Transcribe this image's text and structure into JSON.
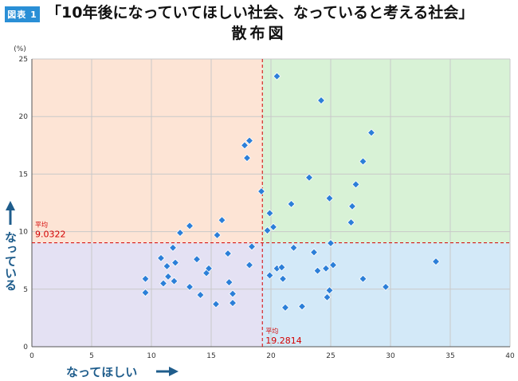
{
  "figure_label": "図表 1",
  "title": "「10年後になっていてほしい社会、なっていると考える社会」",
  "subtitle": "散布図",
  "colors": {
    "q_top_left": "#fde4d5",
    "q_top_right": "#d8f2d6",
    "q_bottom_left": "#e4e1f3",
    "q_bottom_right": "#d3e9f8",
    "point": "#2c7fd8",
    "mean_line": "#d40000",
    "axis_caption": "#1f5d8c"
  },
  "chart_data": {
    "type": "scatter",
    "xlabel": "なってほしい",
    "ylabel": "なっている",
    "y_unit": "(%)",
    "xlim": [
      0,
      40
    ],
    "ylim": [
      0,
      25
    ],
    "x_ticks": [
      0,
      5,
      10,
      15,
      20,
      25,
      30,
      35,
      40
    ],
    "y_ticks": [
      0,
      5,
      10,
      15,
      20,
      25
    ],
    "grid": true,
    "mean_x": {
      "label": "平均",
      "value": "19.2814",
      "x": 19.2814
    },
    "mean_y": {
      "label": "平均",
      "value": "9.0322",
      "y": 9.0322
    },
    "points": [
      {
        "x": 9.5,
        "y": 5.9
      },
      {
        "x": 9.5,
        "y": 4.7
      },
      {
        "x": 10.8,
        "y": 7.7
      },
      {
        "x": 11.0,
        "y": 5.5
      },
      {
        "x": 11.3,
        "y": 7.0
      },
      {
        "x": 11.4,
        "y": 6.1
      },
      {
        "x": 11.8,
        "y": 8.6
      },
      {
        "x": 11.9,
        "y": 5.7
      },
      {
        "x": 12.0,
        "y": 7.3
      },
      {
        "x": 12.4,
        "y": 9.9
      },
      {
        "x": 13.2,
        "y": 10.5
      },
      {
        "x": 13.2,
        "y": 5.2
      },
      {
        "x": 13.8,
        "y": 7.6
      },
      {
        "x": 14.1,
        "y": 4.5
      },
      {
        "x": 14.6,
        "y": 6.4
      },
      {
        "x": 14.8,
        "y": 6.8
      },
      {
        "x": 15.4,
        "y": 3.7
      },
      {
        "x": 15.5,
        "y": 9.7
      },
      {
        "x": 15.9,
        "y": 11.0
      },
      {
        "x": 16.4,
        "y": 8.1
      },
      {
        "x": 16.5,
        "y": 5.6
      },
      {
        "x": 16.8,
        "y": 4.6
      },
      {
        "x": 16.8,
        "y": 3.8
      },
      {
        "x": 17.8,
        "y": 17.5
      },
      {
        "x": 18.0,
        "y": 16.4
      },
      {
        "x": 18.2,
        "y": 17.9
      },
      {
        "x": 18.2,
        "y": 7.1
      },
      {
        "x": 18.4,
        "y": 8.7
      },
      {
        "x": 19.2,
        "y": 13.5
      },
      {
        "x": 19.7,
        "y": 10.1
      },
      {
        "x": 19.9,
        "y": 11.6
      },
      {
        "x": 19.9,
        "y": 6.2
      },
      {
        "x": 20.2,
        "y": 10.4
      },
      {
        "x": 20.5,
        "y": 23.5
      },
      {
        "x": 20.5,
        "y": 6.8
      },
      {
        "x": 20.9,
        "y": 6.9
      },
      {
        "x": 21.0,
        "y": 5.9
      },
      {
        "x": 21.2,
        "y": 3.4
      },
      {
        "x": 21.7,
        "y": 12.4
      },
      {
        "x": 21.9,
        "y": 8.6
      },
      {
        "x": 22.6,
        "y": 3.5
      },
      {
        "x": 23.2,
        "y": 14.7
      },
      {
        "x": 23.6,
        "y": 8.2
      },
      {
        "x": 23.9,
        "y": 6.6
      },
      {
        "x": 24.2,
        "y": 21.4
      },
      {
        "x": 24.6,
        "y": 6.8
      },
      {
        "x": 24.7,
        "y": 4.3
      },
      {
        "x": 24.9,
        "y": 12.9
      },
      {
        "x": 24.9,
        "y": 4.9
      },
      {
        "x": 25.0,
        "y": 9.0
      },
      {
        "x": 25.2,
        "y": 7.1
      },
      {
        "x": 26.7,
        "y": 10.8
      },
      {
        "x": 26.8,
        "y": 12.2
      },
      {
        "x": 27.1,
        "y": 14.1
      },
      {
        "x": 27.7,
        "y": 16.1
      },
      {
        "x": 27.7,
        "y": 5.9
      },
      {
        "x": 28.4,
        "y": 18.6
      },
      {
        "x": 29.6,
        "y": 5.2
      },
      {
        "x": 33.8,
        "y": 7.4
      }
    ]
  }
}
